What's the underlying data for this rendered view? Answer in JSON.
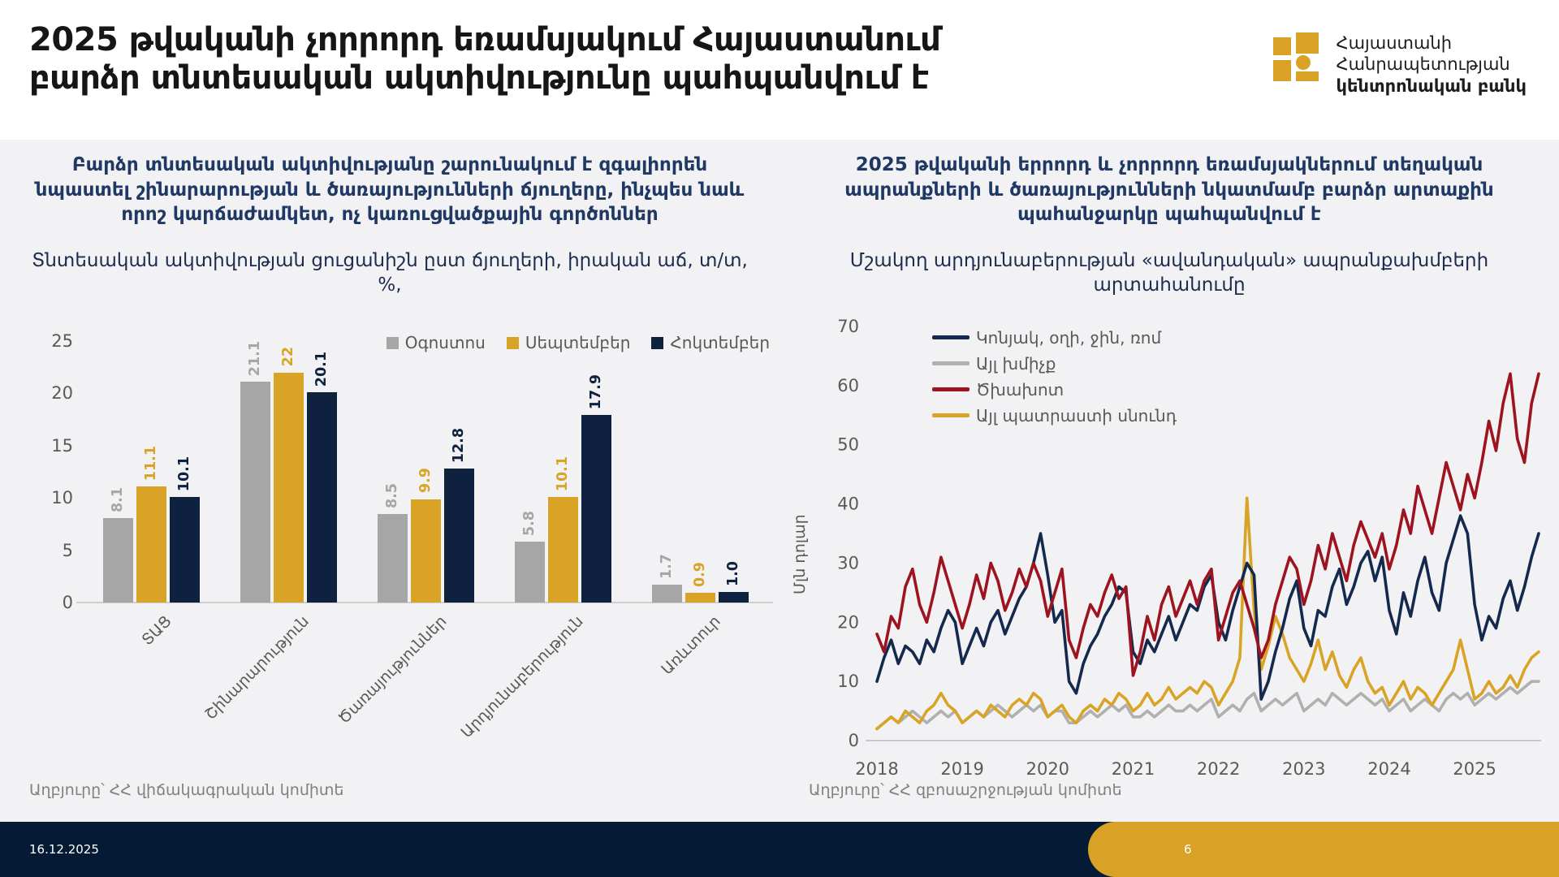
{
  "header": {
    "title_line1": "2025 թվականի չորրորդ եռամսյակում Հայաստանում",
    "title_line2": "բարձր տնտեսական ակտիվությունը պահպանվում է",
    "logo": {
      "line1": "Հայաստանի",
      "line2": "Հանրապետության",
      "line3": "կենտրոնական բանկ",
      "color": "#d9a226"
    }
  },
  "panels": {
    "left": {
      "subtitle": "Բարձր տնտեսական ակտիվությանը շարունակում է զգալիորեն նպաստել շինարարության և ծառայությունների ճյուղերը, ինչպես նաև որոշ կարճաժամկետ, ոչ կառուցվածքային գործոններ",
      "source": "Աղբյուրը՝ ՀՀ վիճակագրական կոմիտե"
    },
    "right": {
      "subtitle": "2025 թվականի երրորդ և չորրորդ եռամսյակներում տեղական ապրանքների և ծառայությունների նկատմամբ բարձր արտաքին պահանջարկը պահպանվում է",
      "source": "Աղբյուրը՝ ՀՀ զբոսաշրջության կոմիտե"
    }
  },
  "footer": {
    "date": "16.12.2025",
    "page": "6"
  },
  "colors": {
    "accent_gold": "#d9a226",
    "navy": "#0e2240",
    "footer_navy": "#051a35",
    "text_navy": "#1f3864",
    "axis_gray": "#595959"
  },
  "chart_data": [
    {
      "type": "bar",
      "title": "Տնտեսական ակտիվության ցուցանիշն ըստ ճյուղերի, իրական աճ, տ/տ, %,",
      "categories": [
        "ՏԱՑ",
        "Շինարարություն",
        "Ծառայություններ",
        "Արդյունաբերություն",
        "Առևտուր"
      ],
      "series": [
        {
          "name": "Օգոստոս",
          "color": "#a6a6a6",
          "values": [
            8.1,
            21.1,
            8.5,
            5.8,
            1.7
          ],
          "labels": [
            "8.1",
            "21.1",
            "8.5",
            "5.8",
            "1.7"
          ]
        },
        {
          "name": "Սեպտեմբեր",
          "color": "#d9a426",
          "values": [
            11.1,
            22,
            9.9,
            10.1,
            0.9
          ],
          "labels": [
            "11.1",
            "22",
            "9.9",
            "10.1",
            "0.9"
          ]
        },
        {
          "name": "Հոկտեմբեր",
          "color": "#0e2240",
          "values": [
            10.1,
            20.1,
            12.8,
            17.9,
            1.0
          ],
          "labels": [
            "10.1",
            "20.1",
            "12.8",
            "17.9",
            "1.0"
          ]
        }
      ],
      "yticks": [
        0,
        5,
        10,
        15,
        20,
        25
      ],
      "ylim": [
        0,
        25
      ],
      "grid": false,
      "legend_position": "top-right"
    },
    {
      "type": "line",
      "title": "Մշակող արդյունաբերության «ավանդական» ապրանքախմբերի արտահանումը",
      "ylabel": "Մլն դոլար",
      "xlabel": "",
      "x_start": 2018,
      "x_step_months": 1,
      "xticks": [
        2018,
        2019,
        2020,
        2021,
        2022,
        2023,
        2024,
        2025
      ],
      "yticks": [
        0,
        10,
        20,
        30,
        40,
        50,
        60,
        70
      ],
      "ylim": [
        0,
        70
      ],
      "grid": false,
      "legend_position": "top-left",
      "series": [
        {
          "name": "Կոնյակ, օղի, ջին, ռոմ",
          "color": "#14294d",
          "values": [
            10,
            14,
            17,
            13,
            16,
            15,
            13,
            17,
            15,
            19,
            22,
            20,
            13,
            16,
            19,
            16,
            20,
            22,
            18,
            21,
            24,
            26,
            30,
            35,
            28,
            20,
            22,
            10,
            8,
            13,
            16,
            18,
            21,
            23,
            26,
            25,
            15,
            13,
            17,
            15,
            18,
            21,
            17,
            20,
            23,
            22,
            26,
            28,
            20,
            17,
            22,
            26,
            30,
            28,
            7,
            10,
            15,
            19,
            24,
            27,
            19,
            16,
            22,
            21,
            26,
            29,
            23,
            26,
            30,
            32,
            27,
            31,
            22,
            18,
            25,
            21,
            27,
            31,
            25,
            22,
            30,
            34,
            38,
            35,
            23,
            17,
            21,
            19,
            24,
            27,
            22,
            26,
            31,
            35
          ]
        },
        {
          "name": "Այլ խմիչք",
          "color": "#b0b0b0",
          "values": [
            2,
            3,
            4,
            3,
            4,
            5,
            4,
            3,
            4,
            5,
            4,
            5,
            3,
            4,
            5,
            4,
            5,
            6,
            5,
            4,
            5,
            6,
            5,
            6,
            4,
            5,
            5,
            3,
            3,
            4,
            5,
            4,
            5,
            6,
            5,
            6,
            4,
            4,
            5,
            4,
            5,
            6,
            5,
            5,
            6,
            5,
            6,
            7,
            4,
            5,
            6,
            5,
            7,
            8,
            5,
            6,
            7,
            6,
            7,
            8,
            5,
            6,
            7,
            6,
            8,
            7,
            6,
            7,
            8,
            7,
            6,
            7,
            5,
            6,
            7,
            5,
            6,
            7,
            6,
            5,
            7,
            8,
            7,
            8,
            6,
            7,
            8,
            7,
            8,
            9,
            8,
            9,
            10,
            10
          ]
        },
        {
          "name": "Ծխախոտ",
          "color": "#9e1320",
          "values": [
            18,
            15,
            21,
            19,
            26,
            29,
            23,
            20,
            25,
            31,
            27,
            23,
            19,
            23,
            28,
            24,
            30,
            27,
            22,
            25,
            29,
            26,
            30,
            27,
            21,
            25,
            29,
            17,
            14,
            19,
            23,
            21,
            25,
            28,
            24,
            26,
            11,
            15,
            21,
            17,
            23,
            26,
            21,
            24,
            27,
            23,
            27,
            29,
            17,
            21,
            25,
            27,
            23,
            19,
            14,
            17,
            23,
            27,
            31,
            29,
            23,
            27,
            33,
            29,
            35,
            31,
            27,
            33,
            37,
            34,
            31,
            35,
            29,
            33,
            39,
            35,
            43,
            39,
            35,
            41,
            47,
            43,
            39,
            45,
            41,
            47,
            54,
            49,
            57,
            62,
            51,
            47,
            57,
            62
          ]
        },
        {
          "name": "Այլ պատրաստի սնունդ",
          "color": "#d9a426",
          "values": [
            2,
            3,
            4,
            3,
            5,
            4,
            3,
            5,
            6,
            8,
            6,
            5,
            3,
            4,
            5,
            4,
            6,
            5,
            4,
            6,
            7,
            6,
            8,
            7,
            4,
            5,
            6,
            4,
            3,
            5,
            6,
            5,
            7,
            6,
            8,
            7,
            5,
            6,
            8,
            6,
            7,
            9,
            7,
            8,
            9,
            8,
            10,
            9,
            6,
            8,
            10,
            14,
            41,
            22,
            12,
            16,
            21,
            18,
            14,
            12,
            10,
            13,
            17,
            12,
            15,
            11,
            9,
            12,
            14,
            10,
            8,
            9,
            6,
            8,
            10,
            7,
            9,
            8,
            6,
            8,
            10,
            12,
            17,
            12,
            7,
            8,
            10,
            8,
            9,
            11,
            9,
            12,
            14,
            15
          ]
        }
      ]
    }
  ]
}
